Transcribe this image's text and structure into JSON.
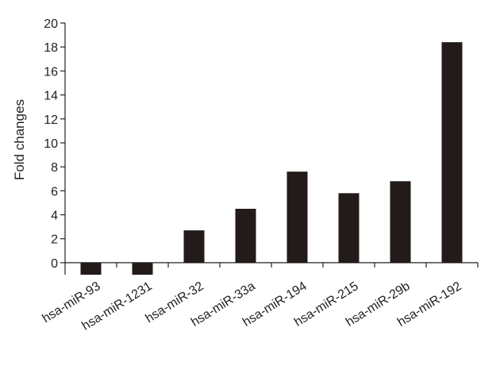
{
  "chart_data": {
    "type": "bar",
    "categories": [
      "hsa-miR-93",
      "hsa-miR-1231",
      "hsa-miR-32",
      "hsa-miR-33a",
      "hsa-miR-194",
      "hsa-miR-215",
      "hsa-miR-29b",
      "hsa-miR-192"
    ],
    "values": [
      -1.0,
      -1.0,
      2.7,
      4.5,
      7.6,
      5.8,
      6.8,
      18.4
    ],
    "title": "",
    "xlabel": "",
    "ylabel": "Fold changes",
    "ylim": [
      -1,
      20
    ],
    "yticks": [
      0,
      2,
      4,
      6,
      8,
      10,
      12,
      14,
      16,
      18,
      20
    ],
    "grid": false,
    "legend": "none",
    "bar_color": "#231a1a"
  }
}
